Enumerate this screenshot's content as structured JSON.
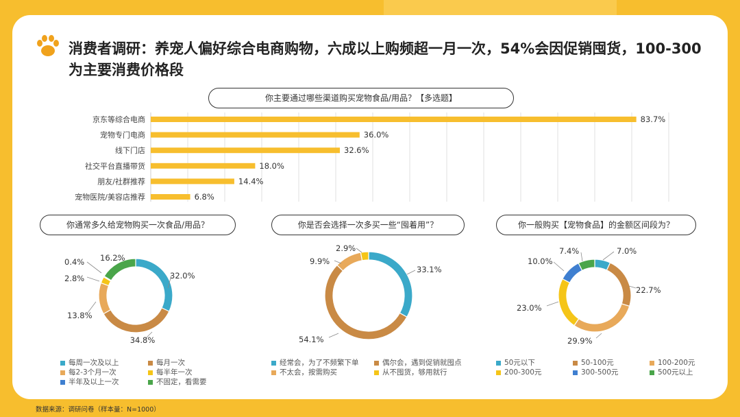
{
  "title": "消费者调研：养宠人偏好综合电商购物，六成以上购频超一月一次，54%会因促销囤货，100-300为主要消费价格段",
  "footer": "数据来源：调研问卷（样本量：N=1000）",
  "chart_data": [
    {
      "type": "bar",
      "title": "你主要通过哪些渠道购买宠物食品/用品？【多选题】",
      "categories": [
        "京东等综合电商",
        "宠物专门电商",
        "线下门店",
        "社交平台直播带货",
        "朋友/社群推荐",
        "宠物医院/美容店推荐"
      ],
      "values": [
        83.7,
        36.0,
        32.6,
        18.0,
        14.4,
        6.8
      ],
      "value_labels": [
        "83.7%",
        "36.0%",
        "32.6%",
        "18.0%",
        "14.4%",
        "6.8%"
      ],
      "xlim": [
        0,
        90
      ],
      "grid": true,
      "color": "#F7BE2E"
    },
    {
      "type": "pie",
      "title": "你通常多久给宠物购买一次食品/用品？",
      "labels": [
        "每周一次及以上",
        "每月一次",
        "每2-3个月一次",
        "每半年一次",
        "半年及以上一次",
        "不固定，看需要"
      ],
      "values": [
        32.0,
        34.8,
        13.8,
        2.8,
        0.4,
        16.2
      ],
      "value_labels": [
        "32.0%",
        "34.8%",
        "13.8%",
        "2.8%",
        "0.4%",
        "16.2%"
      ],
      "colors": [
        "#3BA9C9",
        "#C98A45",
        "#E8A95A",
        "#F5C518",
        "#3F7FD0",
        "#4AA54A"
      ],
      "legend_position": "bottom"
    },
    {
      "type": "pie",
      "title": "你是否会选择一次多买一些“囤着用”？",
      "labels": [
        "经常会，为了不频繁下单",
        "偶尔会，遇到促销就囤点",
        "不太会，按需购买",
        "从不囤货，够用就行"
      ],
      "values": [
        33.1,
        54.1,
        9.9,
        2.9
      ],
      "value_labels": [
        "33.1%",
        "54.1%",
        "9.9%",
        "2.9%"
      ],
      "colors": [
        "#3BA9C9",
        "#C98A45",
        "#E8A95A",
        "#F5C518"
      ],
      "legend_position": "bottom"
    },
    {
      "type": "pie",
      "title": "你一般购买【宠物食品】的金额区间段为？",
      "labels": [
        "50元以下",
        "50-100元",
        "100-200元",
        "200-300元",
        "300-500元",
        "500元以上"
      ],
      "values": [
        7.0,
        22.7,
        29.9,
        23.0,
        10.0,
        7.4
      ],
      "value_labels": [
        "7.0%",
        "22.7%",
        "29.9%",
        "23.0%",
        "10.0%",
        "7.4%"
      ],
      "colors": [
        "#3BA9C9",
        "#C98A45",
        "#E8A95A",
        "#F5C518",
        "#3F7FD0",
        "#4AA54A"
      ],
      "legend_position": "bottom"
    }
  ]
}
